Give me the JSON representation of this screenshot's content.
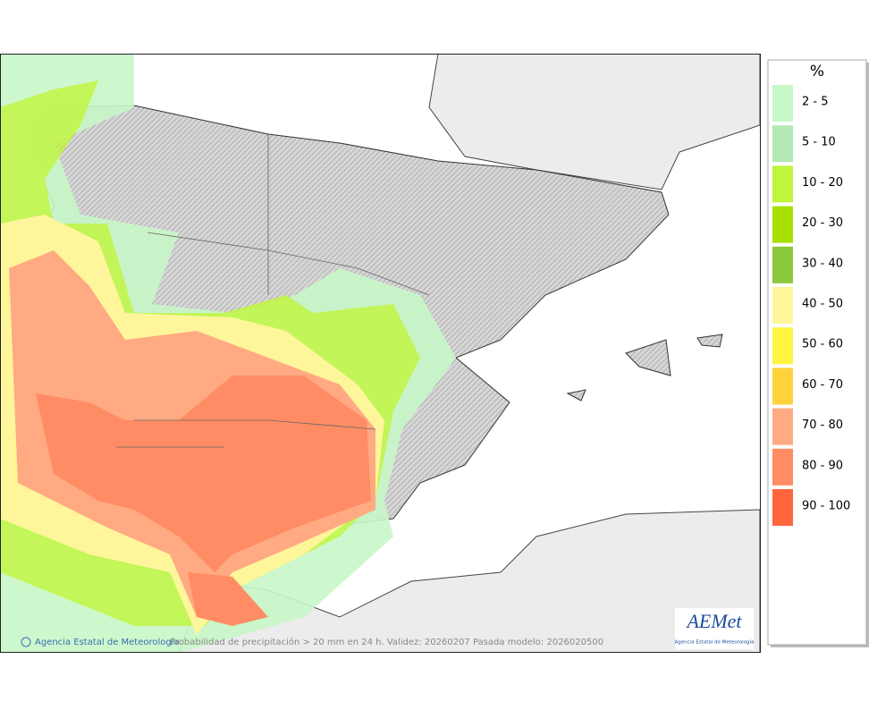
{
  "legend": {
    "title": "%",
    "items": [
      {
        "label": "2 - 5",
        "color": "#c8f7c8"
      },
      {
        "label": "5 - 10",
        "color": "#b4e8b4"
      },
      {
        "label": "10 - 20",
        "color": "#c0f53c"
      },
      {
        "label": "20 - 30",
        "color": "#a8e000"
      },
      {
        "label": "30 - 40",
        "color": "#8cc83c"
      },
      {
        "label": "40 - 50",
        "color": "#fff59a"
      },
      {
        "label": "50 - 60",
        "color": "#fff540"
      },
      {
        "label": "60 - 70",
        "color": "#ffd23c"
      },
      {
        "label": "70 - 80",
        "color": "#ffaa82"
      },
      {
        "label": "80 - 90",
        "color": "#ff8c64"
      },
      {
        "label": "90 - 100",
        "color": "#ff643c"
      }
    ]
  },
  "footer": {
    "credit": "Agencia Estatal de Meteorología",
    "caption": "Probabilidad de precipitación > 20 mm en 24 h. Validez: 20260207 Pasada modelo: 2026020500"
  },
  "logo": {
    "name": "AEMet",
    "subtitle": "Agencia Estatal de Meteorología"
  }
}
